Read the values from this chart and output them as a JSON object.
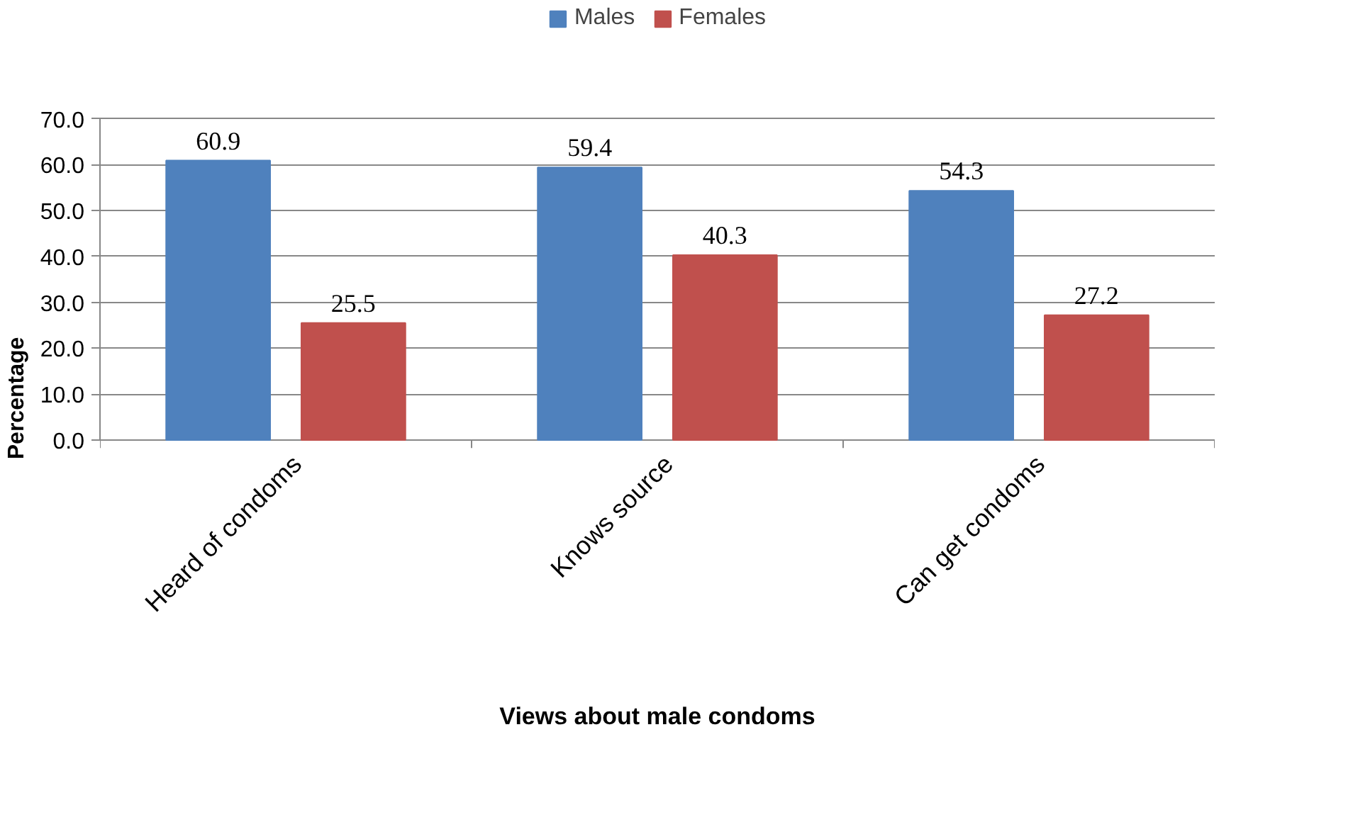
{
  "chart_data": {
    "type": "bar",
    "xlabel": "Views about male condoms",
    "ylabel": "Percentage",
    "categories": [
      "Heard of condoms",
      "Knows source",
      "Can get condoms"
    ],
    "series": [
      {
        "name": "Males",
        "color": "#4f81bd",
        "values": [
          60.9,
          59.4,
          54.3
        ]
      },
      {
        "name": "Females",
        "color": "#c0504d",
        "values": [
          25.5,
          40.3,
          27.2
        ]
      }
    ],
    "ylim": [
      0,
      70
    ],
    "yticks": [
      {
        "value": 0,
        "label": "0.0"
      },
      {
        "value": 10,
        "label": "10.0"
      },
      {
        "value": 20,
        "label": "20.0"
      },
      {
        "value": 30,
        "label": "30.0"
      },
      {
        "value": 40,
        "label": "40.0"
      },
      {
        "value": 50,
        "label": "50.0"
      },
      {
        "value": 60,
        "label": "60.0"
      },
      {
        "value": 70,
        "label": "70.0"
      }
    ],
    "grid": "y",
    "legend": "top",
    "data_labels": true
  }
}
